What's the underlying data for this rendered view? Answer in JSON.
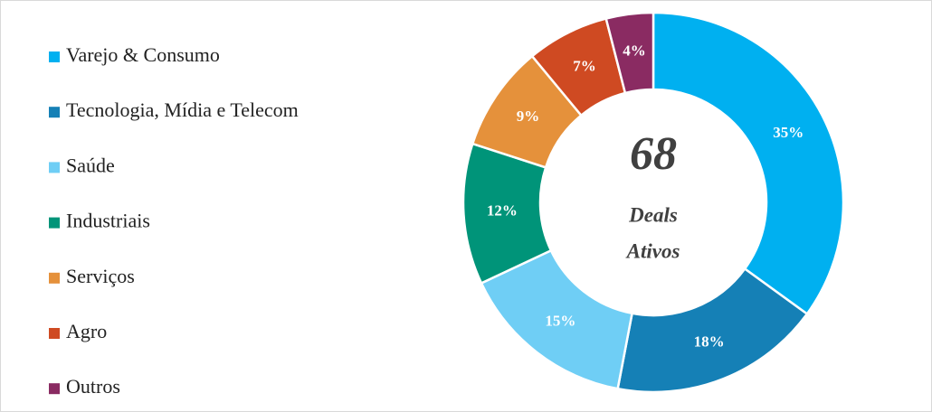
{
  "chart_data": {
    "type": "donut",
    "categories": [
      "Varejo & Consumo",
      "Tecnologia, Mídia e Telecom",
      "Saúde",
      "Industriais",
      "Serviços",
      "Agro",
      "Outros"
    ],
    "values": [
      35,
      18,
      15,
      12,
      9,
      7,
      4
    ],
    "value_labels": [
      "35%",
      "18%",
      "15%",
      "12%",
      "9%",
      "7%",
      "4%"
    ],
    "colors": [
      "#00b0f0",
      "#1580b6",
      "#6fcef5",
      "#009479",
      "#e5913b",
      "#cf4a22",
      "#8a2b62"
    ],
    "center_value": 68,
    "center_label": [
      "Deals",
      "Ativos"
    ],
    "legend": "left"
  }
}
